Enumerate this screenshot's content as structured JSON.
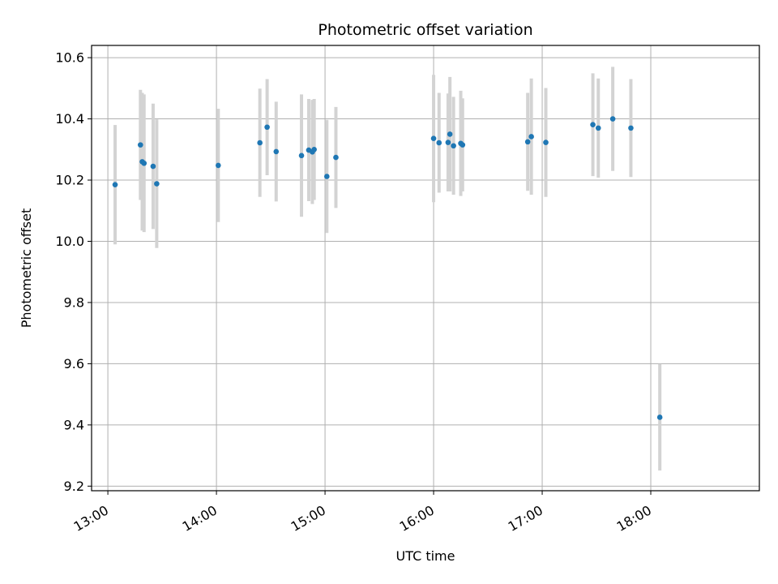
{
  "chart_data": {
    "type": "scatter",
    "title": "Photometric offset variation",
    "xlabel": "UTC time",
    "ylabel": "Photometric offset",
    "xlim": [
      "12:51",
      "19:00"
    ],
    "ylim": [
      9.185,
      10.64
    ],
    "grid": true,
    "x_ticks": [
      "13:00",
      "14:00",
      "15:00",
      "16:00",
      "17:00",
      "18:00"
    ],
    "y_ticks": [
      "9.2",
      "9.4",
      "9.6",
      "9.8",
      "10.0",
      "10.2",
      "10.4",
      "10.6"
    ],
    "colors": {
      "marker": "#1f77b4",
      "errorbar": "#d3d3d3",
      "grid": "#b0b0b0"
    },
    "series": [
      {
        "points": [
          {
            "x": "13:04",
            "y": 10.185,
            "err": 0.195
          },
          {
            "x": "13:18",
            "y": 10.315,
            "err": 0.18
          },
          {
            "x": "13:19",
            "y": 10.26,
            "err": 0.225
          },
          {
            "x": "13:20",
            "y": 10.255,
            "err": 0.225
          },
          {
            "x": "13:25",
            "y": 10.245,
            "err": 0.205
          },
          {
            "x": "13:27",
            "y": 10.188,
            "err": 0.21
          },
          {
            "x": "14:01",
            "y": 10.248,
            "err": 0.185
          },
          {
            "x": "14:24",
            "y": 10.322,
            "err": 0.177
          },
          {
            "x": "14:28",
            "y": 10.373,
            "err": 0.157
          },
          {
            "x": "14:33",
            "y": 10.293,
            "err": 0.163
          },
          {
            "x": "14:47",
            "y": 10.28,
            "err": 0.2
          },
          {
            "x": "14:51",
            "y": 10.298,
            "err": 0.167
          },
          {
            "x": "14:53",
            "y": 10.292,
            "err": 0.17
          },
          {
            "x": "14:54",
            "y": 10.3,
            "err": 0.165
          },
          {
            "x": "15:01",
            "y": 10.212,
            "err": 0.185
          },
          {
            "x": "15:06",
            "y": 10.274,
            "err": 0.165
          },
          {
            "x": "16:00",
            "y": 10.336,
            "err": 0.208
          },
          {
            "x": "16:03",
            "y": 10.322,
            "err": 0.163
          },
          {
            "x": "16:08",
            "y": 10.323,
            "err": 0.16
          },
          {
            "x": "16:09",
            "y": 10.35,
            "err": 0.187
          },
          {
            "x": "16:11",
            "y": 10.312,
            "err": 0.16
          },
          {
            "x": "16:15",
            "y": 10.32,
            "err": 0.172
          },
          {
            "x": "16:16",
            "y": 10.315,
            "err": 0.152
          },
          {
            "x": "16:52",
            "y": 10.325,
            "err": 0.16
          },
          {
            "x": "16:54",
            "y": 10.342,
            "err": 0.19
          },
          {
            "x": "17:02",
            "y": 10.323,
            "err": 0.178
          },
          {
            "x": "17:28",
            "y": 10.381,
            "err": 0.168
          },
          {
            "x": "17:31",
            "y": 10.37,
            "err": 0.162
          },
          {
            "x": "17:39",
            "y": 10.4,
            "err": 0.17
          },
          {
            "x": "17:49",
            "y": 10.37,
            "err": 0.16
          },
          {
            "x": "18:05",
            "y": 9.425,
            "err": 0.174
          }
        ]
      }
    ]
  }
}
